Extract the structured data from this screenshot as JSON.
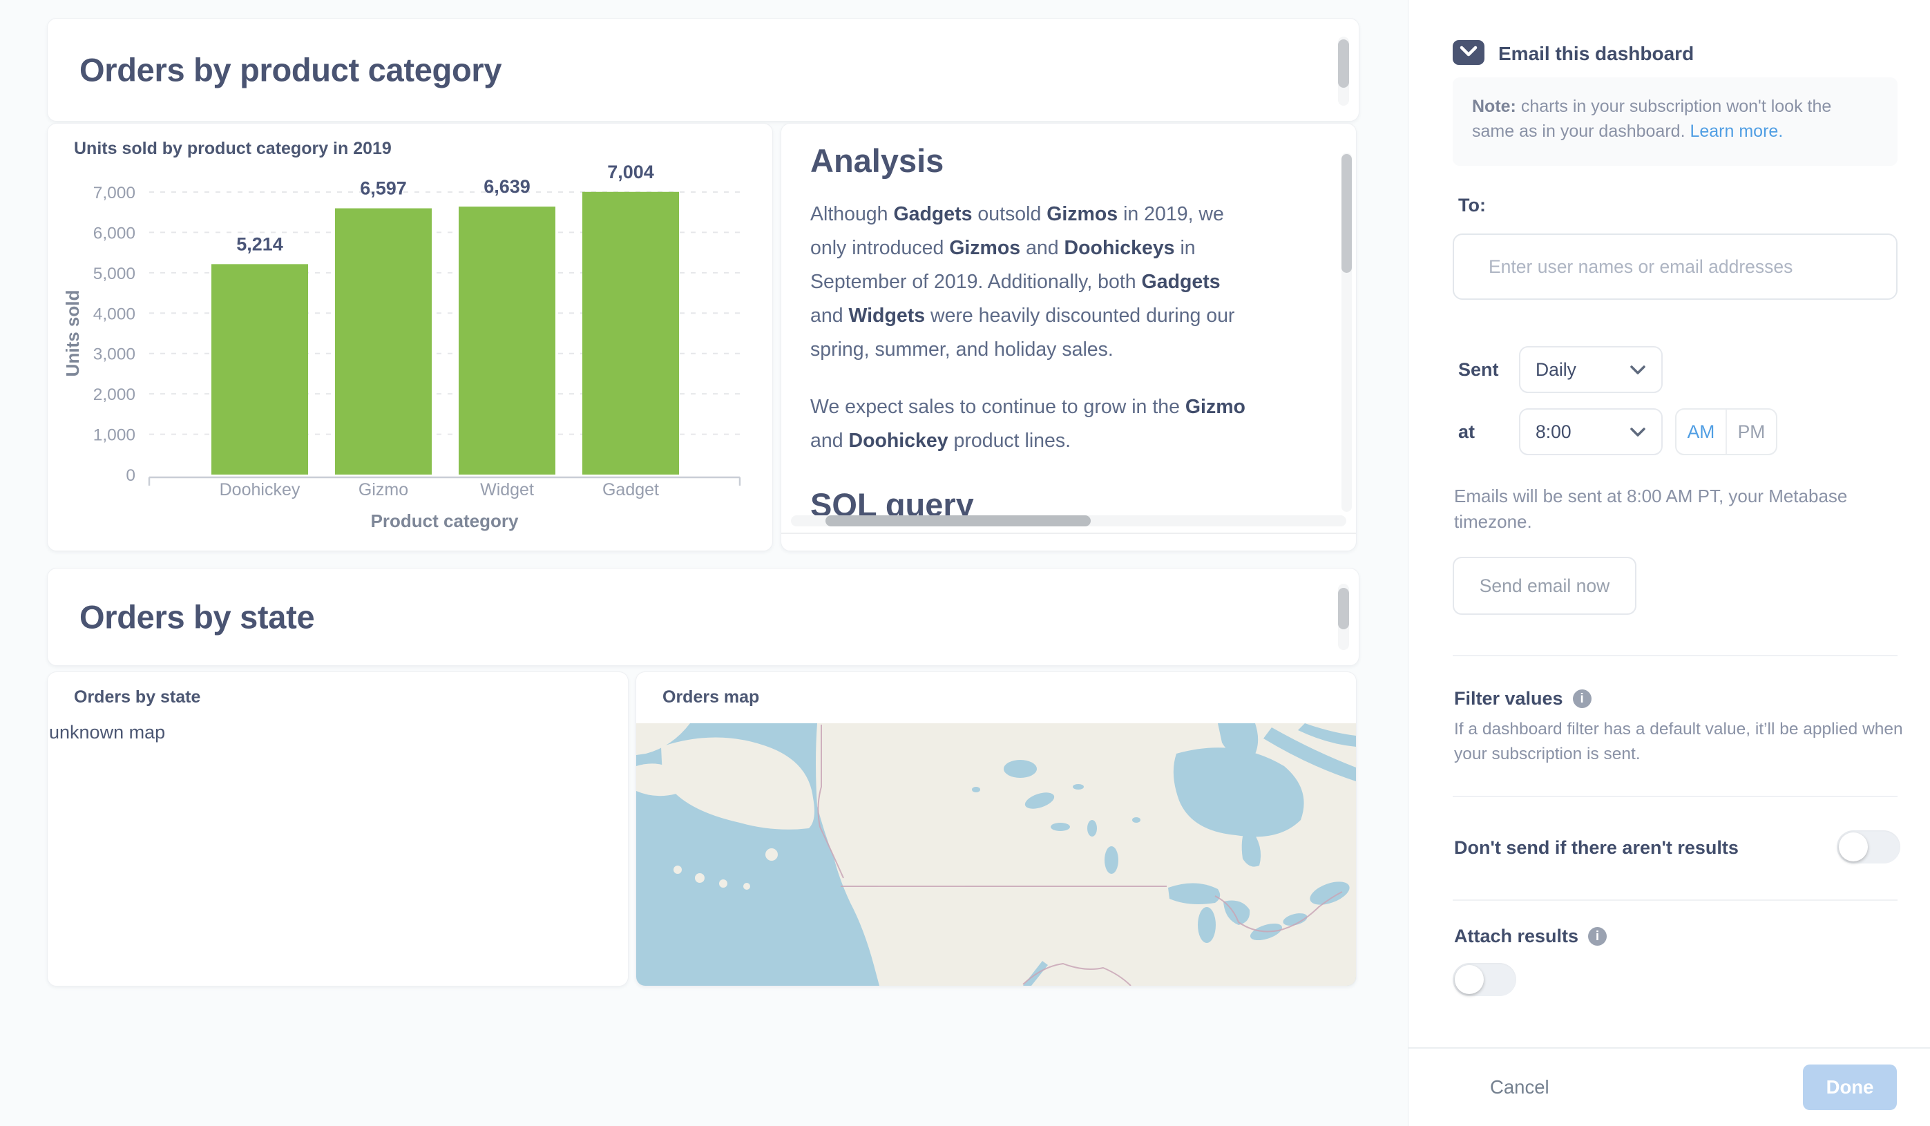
{
  "colors": {
    "accent_blue": "#509EE3",
    "bar_green": "#88BF4D",
    "heading": "#4A5472",
    "muted_text": "#8A92A6",
    "map_water": "#A9CEDE",
    "map_land": "#F0EEE6"
  },
  "dashboard": {
    "section1_title": "Orders by product category",
    "section2_title": "Orders by state",
    "chart_card": {
      "title": "Units sold by product category in 2019"
    },
    "analysis_card": {
      "title": "Analysis",
      "paragraphs": [
        "Although **Gadgets** outsold **Gizmos** in 2019, we only introduced **Gizmos** and **Doohickeys** in September of 2019. Additionally, both **Gadgets** and **Widgets** were heavily discounted during our spring, summer, and holiday sales.",
        "We expect sales to continue to grow in the **Gizmo** and **Doohickey** product lines."
      ],
      "clipped_heading": "SQL query"
    },
    "state_card": {
      "title": "Orders by state",
      "placeholder_text": "unknown map"
    },
    "map_card": {
      "title": "Orders map"
    }
  },
  "chart_data": {
    "type": "bar",
    "title": "Units sold by product category in 2019",
    "categories": [
      "Doohickey",
      "Gizmo",
      "Widget",
      "Gadget"
    ],
    "values": [
      5214,
      6597,
      6639,
      7004
    ],
    "value_labels": [
      "5,214",
      "6,597",
      "6,639",
      "7,004"
    ],
    "xlabel": "Product category",
    "ylabel": "Units sold",
    "ylim": [
      0,
      7000
    ],
    "yticks": [
      0,
      1000,
      2000,
      3000,
      4000,
      5000,
      6000,
      7000
    ],
    "ytick_labels": [
      "0",
      "1,000",
      "2,000",
      "3,000",
      "4,000",
      "5,000",
      "6,000",
      "7,000"
    ],
    "grid": "horizontal-dashed",
    "legend": "none",
    "bar_color": "#88BF4D"
  },
  "sidebar": {
    "title": "Email this dashboard",
    "note_prefix": "Note:",
    "note_text": " charts in your subscription won't look the same as in your dashboard. ",
    "note_link": "Learn more.",
    "to_label": "To:",
    "to_placeholder": "Enter user names or email addresses",
    "sent_label": "Sent",
    "frequency_value": "Daily",
    "at_label": "at",
    "time_value": "8:00",
    "am_label": "AM",
    "pm_label": "PM",
    "meridiem_selected": "AM",
    "timezone_note": "Emails will be sent at 8:00 AM PT, your Metabase timezone.",
    "send_now_label": "Send email now",
    "filter_values_title": "Filter values",
    "filter_values_description": "If a dashboard filter has a default value, it’ll be applied when your subscription is sent.",
    "dont_send_label": "Don't send if there aren't results",
    "dont_send_enabled": false,
    "attach_label": "Attach results",
    "attach_enabled": false,
    "cancel_label": "Cancel",
    "done_label": "Done"
  }
}
